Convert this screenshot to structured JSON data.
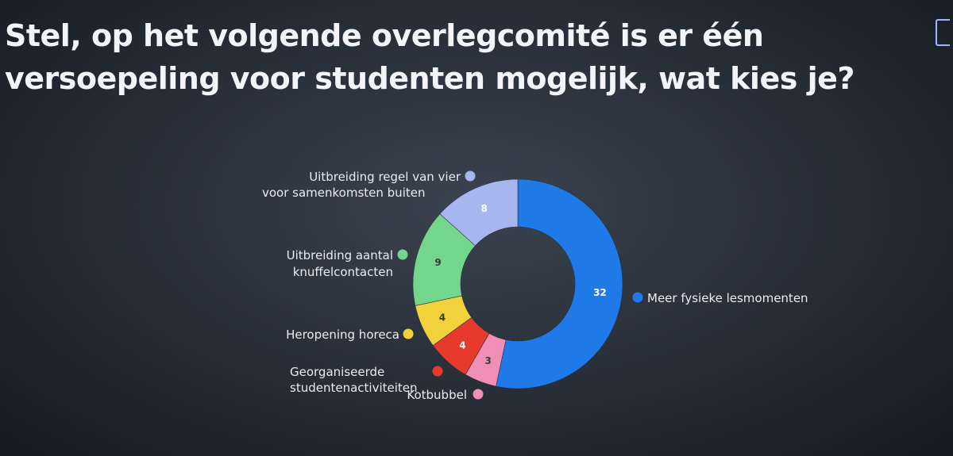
{
  "chart_data": {
    "type": "pie",
    "donut": true,
    "title": "Stel, op het volgende overlegcomité is er één versoepeling voor studenten mogelijk, wat kies je?",
    "slices": [
      {
        "label": "Meer fysieke lesmomenten",
        "value": 32,
        "color": "#1f7ae8"
      },
      {
        "label": "Kotbubbel",
        "value": 3,
        "color": "#ef8fb6"
      },
      {
        "label": "Georganiseerde studentenactiviteiten",
        "value": 4,
        "color": "#e83a2c"
      },
      {
        "label": "Heropening horeca",
        "value": 4,
        "color": "#f2d23a"
      },
      {
        "label": "Uitbreiding aantal knuffelcontacten",
        "value": 9,
        "color": "#74d68d"
      },
      {
        "label": "Uitbreiding regel van vier voor samenkomsten buiten",
        "value": 8,
        "color": "#a7b6ee"
      }
    ]
  }
}
